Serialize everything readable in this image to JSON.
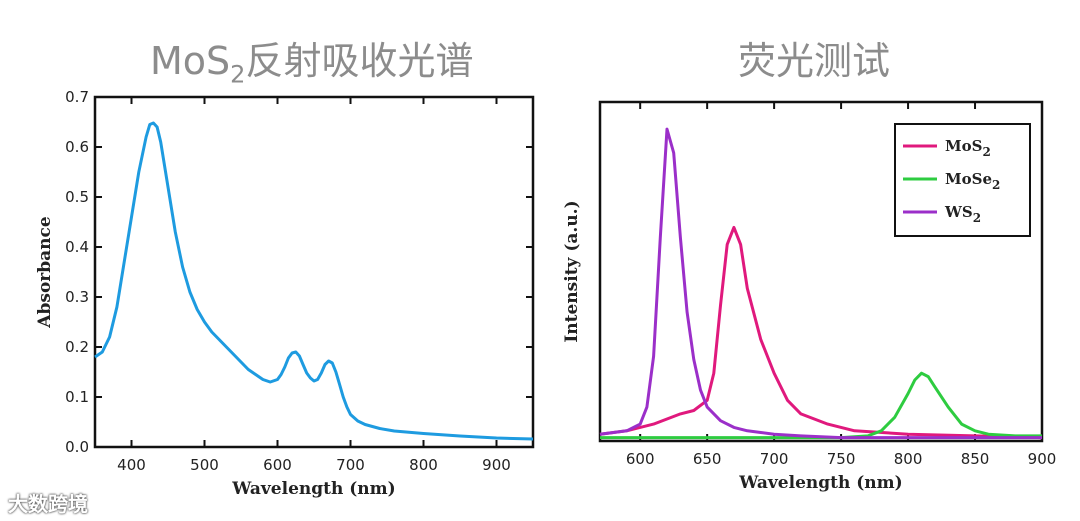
{
  "watermark": {
    "text": "大数跨境"
  },
  "chart_data": [
    {
      "type": "line",
      "title": "MoS",
      "title_sub": "2",
      "title_rest": "反射吸收光谱",
      "xlabel": "Wavelength (nm)",
      "ylabel": "Absorbance",
      "xlim": [
        350,
        950
      ],
      "ylim": [
        0,
        0.7
      ],
      "xticks": [
        400,
        500,
        600,
        700,
        800,
        900
      ],
      "yticks": [
        0.0,
        0.1,
        0.2,
        0.3,
        0.4,
        0.5,
        0.6,
        0.7
      ],
      "ytick_labels": [
        "0.0",
        "0.1",
        "0.2",
        "0.3",
        "0.4",
        "0.5",
        "0.6",
        "0.7"
      ],
      "grid": false,
      "series": [
        {
          "color": "#1e9be0",
          "x": [
            350,
            360,
            370,
            380,
            390,
            400,
            410,
            420,
            425,
            430,
            435,
            440,
            450,
            460,
            470,
            480,
            490,
            500,
            510,
            520,
            530,
            540,
            550,
            560,
            570,
            580,
            590,
            600,
            605,
            610,
            615,
            620,
            625,
            630,
            635,
            640,
            645,
            650,
            655,
            660,
            665,
            670,
            675,
            680,
            685,
            690,
            695,
            700,
            710,
            720,
            740,
            760,
            800,
            850,
            900,
            950
          ],
          "y": [
            0.18,
            0.19,
            0.22,
            0.28,
            0.37,
            0.46,
            0.55,
            0.62,
            0.645,
            0.648,
            0.64,
            0.61,
            0.52,
            0.43,
            0.36,
            0.31,
            0.275,
            0.25,
            0.23,
            0.215,
            0.2,
            0.185,
            0.17,
            0.155,
            0.145,
            0.135,
            0.13,
            0.135,
            0.145,
            0.16,
            0.178,
            0.188,
            0.19,
            0.182,
            0.165,
            0.148,
            0.138,
            0.132,
            0.135,
            0.148,
            0.165,
            0.172,
            0.168,
            0.15,
            0.125,
            0.1,
            0.08,
            0.065,
            0.052,
            0.045,
            0.037,
            0.032,
            0.027,
            0.022,
            0.018,
            0.016
          ]
        }
      ]
    },
    {
      "type": "line",
      "title": "荧光测试",
      "xlabel": "Wavelength (nm)",
      "ylabel": "Intensity (a.u.)",
      "xlim": [
        570,
        900
      ],
      "ylim": [
        0,
        1.0
      ],
      "xticks": [
        600,
        650,
        700,
        750,
        800,
        850,
        900
      ],
      "grid": false,
      "legend": "top-right",
      "series": [
        {
          "name": "MoS",
          "sub": "2",
          "color": "#e0197d",
          "x": [
            570,
            590,
            610,
            630,
            640,
            650,
            655,
            660,
            665,
            670,
            675,
            680,
            690,
            700,
            710,
            720,
            740,
            760,
            800,
            850,
            900
          ],
          "y": [
            0.02,
            0.03,
            0.05,
            0.08,
            0.09,
            0.12,
            0.2,
            0.4,
            0.58,
            0.63,
            0.58,
            0.45,
            0.3,
            0.2,
            0.12,
            0.08,
            0.05,
            0.03,
            0.02,
            0.015,
            0.01
          ]
        },
        {
          "name": "MoSe",
          "sub": "2",
          "color": "#2ecc40",
          "x": [
            570,
            600,
            650,
            700,
            750,
            770,
            780,
            790,
            800,
            805,
            810,
            815,
            820,
            830,
            840,
            850,
            860,
            880,
            900
          ],
          "y": [
            0.01,
            0.01,
            0.01,
            0.01,
            0.01,
            0.015,
            0.03,
            0.07,
            0.14,
            0.18,
            0.2,
            0.19,
            0.16,
            0.1,
            0.05,
            0.03,
            0.02,
            0.015,
            0.015
          ]
        },
        {
          "name": "WS",
          "sub": "2",
          "color": "#9b2fc9",
          "x": [
            570,
            580,
            590,
            600,
            605,
            610,
            615,
            620,
            625,
            630,
            635,
            640,
            645,
            650,
            660,
            670,
            680,
            690,
            700,
            720,
            750,
            800,
            850,
            900
          ],
          "y": [
            0.02,
            0.025,
            0.03,
            0.05,
            0.1,
            0.25,
            0.6,
            0.92,
            0.85,
            0.6,
            0.38,
            0.24,
            0.15,
            0.1,
            0.06,
            0.04,
            0.03,
            0.025,
            0.02,
            0.015,
            0.01,
            0.01,
            0.01,
            0.01
          ]
        }
      ]
    }
  ]
}
